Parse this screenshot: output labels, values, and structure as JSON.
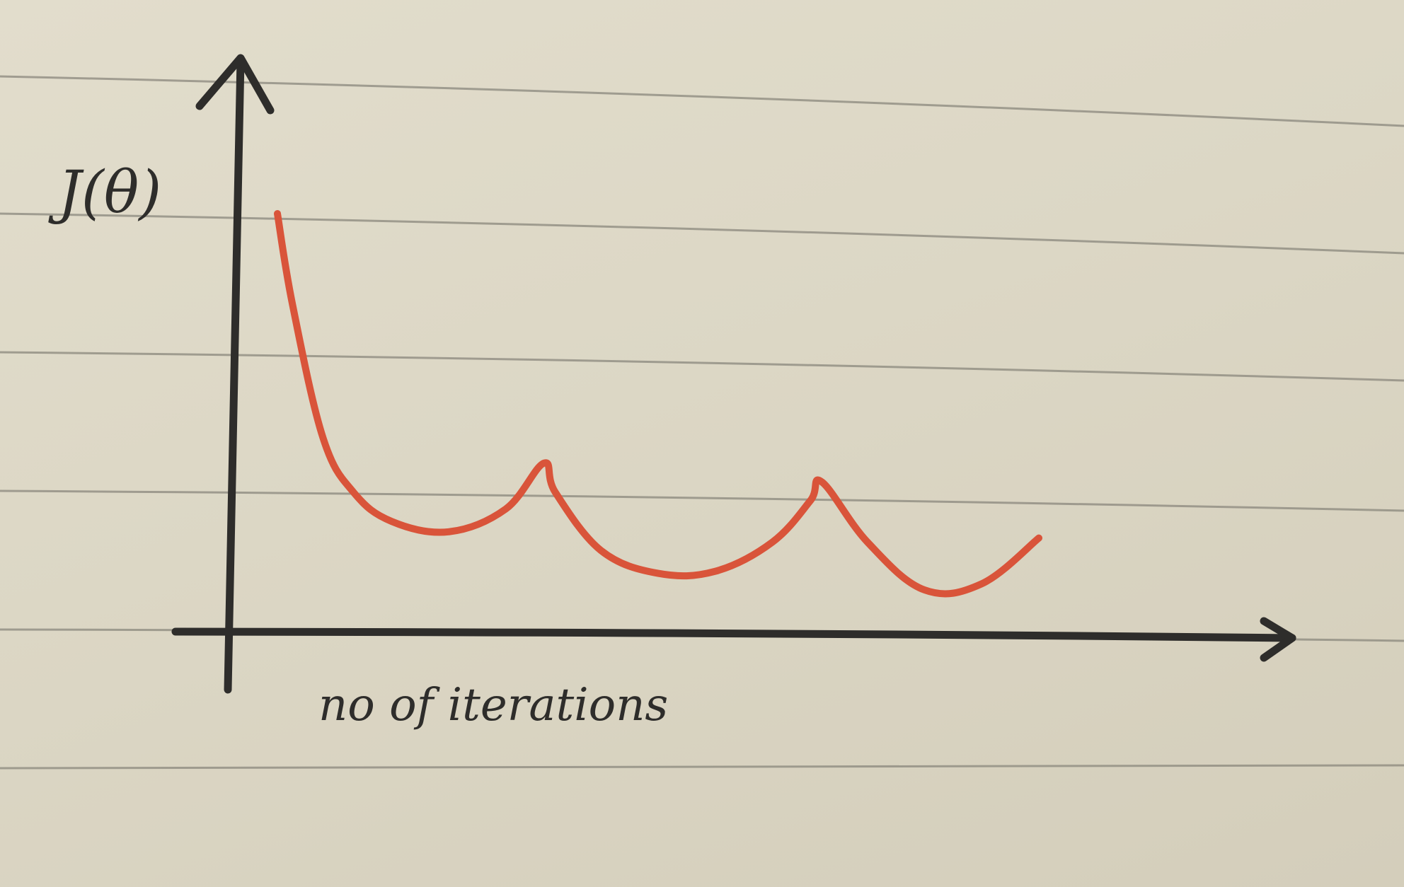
{
  "chart_data": {
    "type": "line",
    "ylabel": "J(θ)",
    "xlabel": "no of iterations",
    "grid": false,
    "legend": "none",
    "axis_ticks": false,
    "colors": {
      "series": "#d9543a",
      "axes": "#2e2d2b",
      "ruled_lines": "#8a877c",
      "paper": "#dedac9"
    },
    "series": [
      {
        "x": [
          0,
          0.4,
          1.2,
          2,
          3,
          4.5,
          6,
          7,
          7.3,
          8.5,
          10,
          11.5,
          13,
          14,
          14.3,
          15.5,
          17,
          18.5,
          20
        ],
        "y": [
          10,
          7.8,
          4.6,
          3.3,
          2.6,
          2.35,
          2.9,
          4.0,
          3.3,
          1.9,
          1.35,
          1.4,
          2.1,
          3.1,
          3.55,
          2.1,
          0.95,
          1.1,
          2.2
        ]
      }
    ]
  }
}
